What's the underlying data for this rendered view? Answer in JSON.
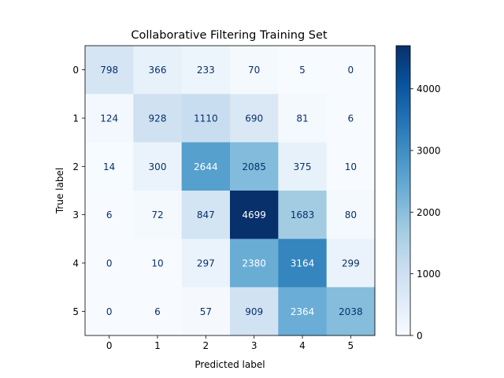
{
  "chart_data": {
    "type": "heatmap",
    "title": "Collaborative Filtering Training Set",
    "xlabel": "Predicted label",
    "ylabel": "True label",
    "x_categories": [
      "0",
      "1",
      "2",
      "3",
      "4",
      "5"
    ],
    "y_categories": [
      "0",
      "1",
      "2",
      "3",
      "4",
      "5"
    ],
    "matrix": [
      [
        798,
        366,
        233,
        70,
        5,
        0
      ],
      [
        124,
        928,
        1110,
        690,
        81,
        6
      ],
      [
        14,
        300,
        2644,
        2085,
        375,
        10
      ],
      [
        6,
        72,
        847,
        4699,
        1683,
        80
      ],
      [
        0,
        10,
        297,
        2380,
        3164,
        299
      ],
      [
        0,
        6,
        57,
        909,
        2364,
        2038
      ]
    ],
    "colormap": "Blues",
    "color_range": [
      0,
      4699
    ],
    "colorbar_ticks": [
      "0",
      "1000",
      "2000",
      "3000",
      "4000"
    ],
    "colorbar_tick_values": [
      0,
      1000,
      2000,
      3000,
      4000
    ],
    "text_color_light": "#ffffff",
    "text_color_dark": "#08306b"
  }
}
